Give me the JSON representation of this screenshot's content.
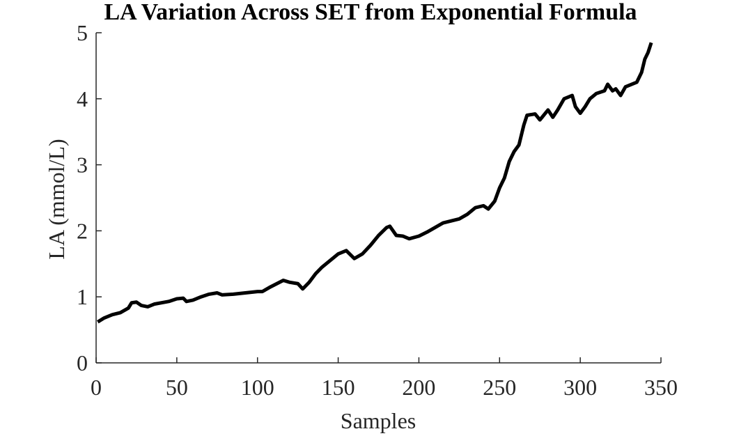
{
  "chart_data": {
    "type": "line",
    "title": "LA Variation Across SET from Exponential Formula",
    "x_label": "Samples",
    "y_label": "LA (mmol/L)",
    "x": [
      1,
      5,
      10,
      15,
      20,
      22,
      25,
      28,
      32,
      36,
      45,
      50,
      54,
      56,
      60,
      65,
      70,
      75,
      78,
      85,
      100,
      103,
      108,
      112,
      116,
      120,
      125,
      128,
      132,
      136,
      140,
      145,
      150,
      155,
      160,
      165,
      170,
      175,
      180,
      182,
      186,
      190,
      194,
      200,
      205,
      210,
      215,
      225,
      230,
      235,
      240,
      243,
      247,
      250,
      253,
      256,
      259,
      262,
      265,
      267,
      272,
      275,
      280,
      283,
      286,
      290,
      295,
      297,
      300,
      303,
      306,
      310,
      315,
      317,
      320,
      322,
      325,
      328,
      335,
      338,
      340,
      342,
      344
    ],
    "series": [
      {
        "name": "LA",
        "color": "#000000",
        "values": [
          0.62,
          0.68,
          0.73,
          0.76,
          0.83,
          0.91,
          0.92,
          0.87,
          0.85,
          0.89,
          0.93,
          0.97,
          0.98,
          0.93,
          0.95,
          1.0,
          1.04,
          1.06,
          1.03,
          1.04,
          1.08,
          1.08,
          1.15,
          1.2,
          1.25,
          1.22,
          1.2,
          1.12,
          1.22,
          1.35,
          1.45,
          1.55,
          1.65,
          1.7,
          1.58,
          1.65,
          1.78,
          1.93,
          2.05,
          2.07,
          1.93,
          1.92,
          1.88,
          1.92,
          1.98,
          2.05,
          2.12,
          2.18,
          2.25,
          2.35,
          2.38,
          2.33,
          2.45,
          2.65,
          2.8,
          3.05,
          3.2,
          3.3,
          3.6,
          3.75,
          3.77,
          3.68,
          3.83,
          3.72,
          3.83,
          4.0,
          4.05,
          3.88,
          3.78,
          3.88,
          4.0,
          4.08,
          4.12,
          4.22,
          4.12,
          4.15,
          4.05,
          4.18,
          4.25,
          4.4,
          4.6,
          4.7,
          4.85
        ]
      }
    ],
    "xlim": [
      0,
      350
    ],
    "xticks": [
      0,
      50,
      100,
      150,
      200,
      250,
      300,
      350
    ],
    "ylim": [
      0,
      5
    ],
    "yticks": [
      0,
      1,
      2,
      3,
      4,
      5
    ],
    "grid": false
  }
}
